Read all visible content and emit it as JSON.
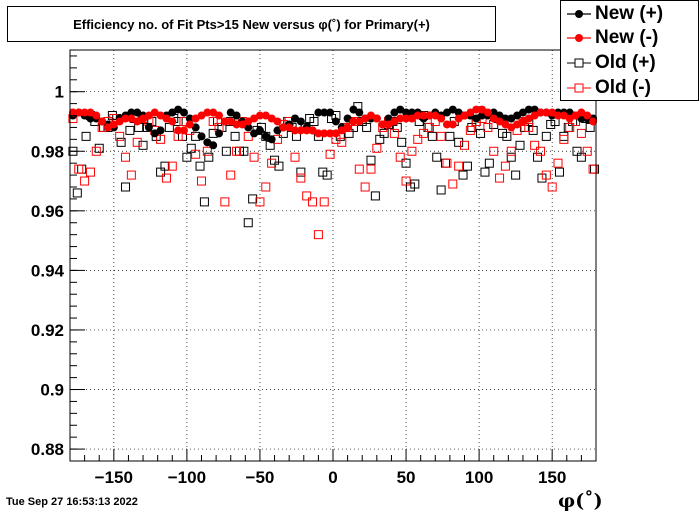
{
  "title": "Efficiency no. of Fit Pts>15 New versus φ(˚) for Primary(+)",
  "footer_date": "Tue Sep 27 16:53:13 2022",
  "x_axis_title": "φ(˚)",
  "colors": {
    "black": "#000000",
    "red": "#ff0000",
    "grid": "#000000"
  },
  "chart_data": {
    "type": "scatter",
    "title": "Efficiency no. of Fit Pts>15 New versus φ(˚) for Primary(+)",
    "xlabel": "φ(˚)",
    "ylabel": "",
    "xlim": [
      -180,
      180
    ],
    "ylim": [
      0.876,
      1.014
    ],
    "grid": true,
    "legend_position": "top-right",
    "x_ticks": [
      -150,
      -100,
      -50,
      0,
      50,
      100,
      150
    ],
    "x_tick_labels": [
      "−150",
      "−100",
      "−50",
      "0",
      "50",
      "100",
      "150"
    ],
    "y_ticks": [
      0.88,
      0.9,
      0.92,
      0.94,
      0.96,
      0.98,
      1.0
    ],
    "y_tick_labels": [
      "0.88",
      "0.9",
      "0.92",
      "0.94",
      "0.96",
      "0.98",
      "1"
    ],
    "series": [
      {
        "name": "New (+)",
        "marker": "filled-circle",
        "color": "#000000",
        "x": [
          -178,
          -174,
          -170,
          -166,
          -162,
          -158,
          -154,
          -150,
          -146,
          -142,
          -138,
          -134,
          -130,
          -126,
          -122,
          -118,
          -114,
          -110,
          -106,
          -102,
          -98,
          -94,
          -90,
          -86,
          -82,
          -78,
          -74,
          -70,
          -66,
          -62,
          -58,
          -54,
          -50,
          -46,
          -42,
          -38,
          -34,
          -30,
          -26,
          -22,
          -18,
          -14,
          -10,
          -6,
          -2,
          2,
          6,
          10,
          14,
          18,
          22,
          26,
          30,
          34,
          38,
          42,
          46,
          50,
          54,
          58,
          62,
          66,
          70,
          74,
          78,
          82,
          86,
          90,
          94,
          98,
          102,
          106,
          110,
          114,
          118,
          122,
          126,
          130,
          134,
          138,
          142,
          146,
          150,
          154,
          158,
          162,
          166,
          170,
          174,
          178
        ],
        "y": [
          0.992,
          0.993,
          0.992,
          0.991,
          0.991,
          0.99,
          0.989,
          0.988,
          0.991,
          0.992,
          0.993,
          0.993,
          0.992,
          0.988,
          0.986,
          0.987,
          0.992,
          0.993,
          0.994,
          0.993,
          0.991,
          0.988,
          0.985,
          0.983,
          0.982,
          0.986,
          0.99,
          0.993,
          0.992,
          0.99,
          0.988,
          0.986,
          0.987,
          0.985,
          0.984,
          0.987,
          0.988,
          0.989,
          0.991,
          0.99,
          0.988,
          0.987,
          0.993,
          0.993,
          0.993,
          0.99,
          0.988,
          0.991,
          0.994,
          0.993,
          0.991,
          0.991,
          0.991,
          0.989,
          0.991,
          0.993,
          0.994,
          0.993,
          0.993,
          0.993,
          0.991,
          0.992,
          0.993,
          0.992,
          0.993,
          0.994,
          0.993,
          0.992,
          0.992,
          0.991,
          0.992,
          0.992,
          0.993,
          0.992,
          0.991,
          0.991,
          0.992,
          0.993,
          0.994,
          0.994,
          0.993,
          0.993,
          0.992,
          0.993,
          0.993,
          0.993,
          0.992,
          0.991,
          0.991,
          0.991
        ]
      },
      {
        "name": "New (-)",
        "marker": "filled-circle",
        "color": "#ff0000",
        "x": [
          -178,
          -174,
          -170,
          -166,
          -162,
          -158,
          -154,
          -150,
          -146,
          -142,
          -138,
          -134,
          -130,
          -126,
          -122,
          -118,
          -114,
          -110,
          -106,
          -102,
          -98,
          -94,
          -90,
          -86,
          -82,
          -78,
          -74,
          -70,
          -66,
          -62,
          -58,
          -54,
          -50,
          -46,
          -42,
          -38,
          -34,
          -30,
          -26,
          -22,
          -18,
          -14,
          -10,
          -6,
          -2,
          2,
          6,
          10,
          14,
          18,
          22,
          26,
          30,
          34,
          38,
          42,
          46,
          50,
          54,
          58,
          62,
          66,
          70,
          74,
          78,
          82,
          86,
          90,
          94,
          98,
          102,
          106,
          110,
          114,
          118,
          122,
          126,
          130,
          134,
          138,
          142,
          146,
          150,
          154,
          158,
          162,
          166,
          170,
          174,
          178
        ],
        "y": [
          0.993,
          0.993,
          0.993,
          0.993,
          0.992,
          0.99,
          0.988,
          0.989,
          0.99,
          0.991,
          0.991,
          0.99,
          0.991,
          0.992,
          0.993,
          0.992,
          0.991,
          0.99,
          0.987,
          0.987,
          0.989,
          0.991,
          0.992,
          0.993,
          0.993,
          0.992,
          0.99,
          0.99,
          0.989,
          0.989,
          0.99,
          0.991,
          0.992,
          0.992,
          0.991,
          0.99,
          0.988,
          0.988,
          0.987,
          0.987,
          0.987,
          0.987,
          0.986,
          0.986,
          0.986,
          0.986,
          0.987,
          0.988,
          0.99,
          0.99,
          0.991,
          0.992,
          0.991,
          0.989,
          0.989,
          0.99,
          0.991,
          0.991,
          0.991,
          0.992,
          0.992,
          0.992,
          0.992,
          0.991,
          0.989,
          0.989,
          0.991,
          0.992,
          0.993,
          0.994,
          0.994,
          0.993,
          0.991,
          0.99,
          0.989,
          0.988,
          0.989,
          0.99,
          0.991,
          0.992,
          0.993,
          0.993,
          0.993,
          0.992,
          0.992,
          0.991,
          0.992,
          0.993,
          0.992,
          0.99
        ]
      },
      {
        "name": "Old (+)",
        "marker": "open-square",
        "color": "#000000",
        "x": [
          -178,
          -175,
          -172,
          -169,
          -166,
          -163,
          -160,
          -157,
          -154,
          -151,
          -148,
          -145,
          -142,
          -139,
          -136,
          -133,
          -130,
          -127,
          -124,
          -121,
          -118,
          -115,
          -112,
          -109,
          -106,
          -103,
          -100,
          -97,
          -94,
          -91,
          -88,
          -85,
          -82,
          -79,
          -76,
          -73,
          -70,
          -67,
          -64,
          -61,
          -58,
          -55,
          -52,
          -49,
          -46,
          -43,
          -40,
          -37,
          -34,
          -31,
          -28,
          -25,
          -22,
          -19,
          -16,
          -13,
          -10,
          -7,
          -4,
          -1,
          2,
          5,
          8,
          11,
          14,
          17,
          20,
          23,
          26,
          29,
          32,
          35,
          38,
          41,
          44,
          47,
          50,
          53,
          56,
          59,
          62,
          65,
          68,
          71,
          74,
          77,
          80,
          83,
          86,
          89,
          92,
          95,
          98,
          101,
          104,
          107,
          110,
          113,
          116,
          119,
          122,
          125,
          128,
          131,
          134,
          137,
          140,
          143,
          146,
          149,
          152,
          155,
          158,
          161,
          164,
          167,
          170,
          173,
          176,
          179
        ],
        "y": [
          0.98,
          0.966,
          0.974,
          0.985,
          0.992,
          0.99,
          0.981,
          0.988,
          0.988,
          0.992,
          0.991,
          0.983,
          0.968,
          0.987,
          0.991,
          0.988,
          0.982,
          0.988,
          0.99,
          0.985,
          0.973,
          0.975,
          0.988,
          0.991,
          0.99,
          0.985,
          0.978,
          0.981,
          0.985,
          0.975,
          0.963,
          0.978,
          0.986,
          0.99,
          0.988,
          0.98,
          0.99,
          0.985,
          0.98,
          0.98,
          0.956,
          0.964,
          0.987,
          0.988,
          0.985,
          0.982,
          0.977,
          0.975,
          0.986,
          0.99,
          0.988,
          0.985,
          0.973,
          0.988,
          0.991,
          0.99,
          0.985,
          0.973,
          0.972,
          0.991,
          0.992,
          0.985,
          0.988,
          0.986,
          0.988,
          0.995,
          0.99,
          0.988,
          0.977,
          0.965,
          0.984,
          0.986,
          0.989,
          0.99,
          0.988,
          0.983,
          0.976,
          0.968,
          0.969,
          0.99,
          0.992,
          0.988,
          0.985,
          0.978,
          0.967,
          0.976,
          0.985,
          0.99,
          0.983,
          0.972,
          0.975,
          0.988,
          0.99,
          0.986,
          0.973,
          0.976,
          0.989,
          0.991,
          0.986,
          0.985,
          0.978,
          0.972,
          0.982,
          0.988,
          0.99,
          0.987,
          0.978,
          0.971,
          0.985,
          0.989,
          0.99,
          0.973,
          0.985,
          0.988,
          0.99,
          0.98,
          0.978,
          0.991,
          0.988,
          0.974
        ]
      },
      {
        "name": "Old (-)",
        "marker": "open-square",
        "color": "#ff0000",
        "x": [
          -178,
          -174,
          -170,
          -166,
          -162,
          -158,
          -154,
          -150,
          -146,
          -142,
          -138,
          -134,
          -130,
          -126,
          -122,
          -118,
          -114,
          -110,
          -106,
          -102,
          -98,
          -94,
          -90,
          -86,
          -82,
          -78,
          -74,
          -70,
          -66,
          -62,
          -58,
          -54,
          -50,
          -46,
          -42,
          -38,
          -34,
          -30,
          -26,
          -22,
          -18,
          -14,
          -10,
          -6,
          -2,
          2,
          6,
          10,
          14,
          18,
          22,
          26,
          30,
          34,
          38,
          42,
          46,
          50,
          54,
          58,
          62,
          66,
          70,
          74,
          78,
          82,
          86,
          90,
          94,
          98,
          102,
          106,
          110,
          114,
          118,
          122,
          126,
          130,
          134,
          138,
          142,
          146,
          150,
          154,
          158,
          162,
          166,
          170,
          174,
          178
        ],
        "y": [
          0.991,
          0.974,
          0.97,
          0.973,
          0.98,
          0.988,
          0.99,
          0.991,
          0.985,
          0.978,
          0.972,
          0.983,
          0.991,
          0.99,
          0.987,
          0.984,
          0.971,
          0.975,
          0.985,
          0.99,
          0.987,
          0.979,
          0.97,
          0.98,
          0.99,
          0.988,
          0.963,
          0.972,
          0.98,
          0.99,
          0.985,
          0.978,
          0.963,
          0.968,
          0.976,
          0.984,
          0.989,
          0.99,
          0.978,
          0.971,
          0.965,
          0.963,
          0.952,
          0.963,
          0.979,
          0.984,
          0.983,
          0.988,
          0.99,
          0.974,
          0.968,
          0.974,
          0.981,
          0.988,
          0.99,
          0.986,
          0.978,
          0.97,
          0.98,
          0.984,
          0.986,
          0.988,
          0.99,
          0.985,
          0.976,
          0.969,
          0.975,
          0.982,
          0.987,
          0.99,
          0.991,
          0.988,
          0.98,
          0.971,
          0.975,
          0.98,
          0.987,
          0.99,
          0.988,
          0.982,
          0.98,
          0.972,
          0.968,
          0.976,
          0.984,
          0.988,
          0.99,
          0.986,
          0.98,
          0.974
        ]
      }
    ]
  }
}
